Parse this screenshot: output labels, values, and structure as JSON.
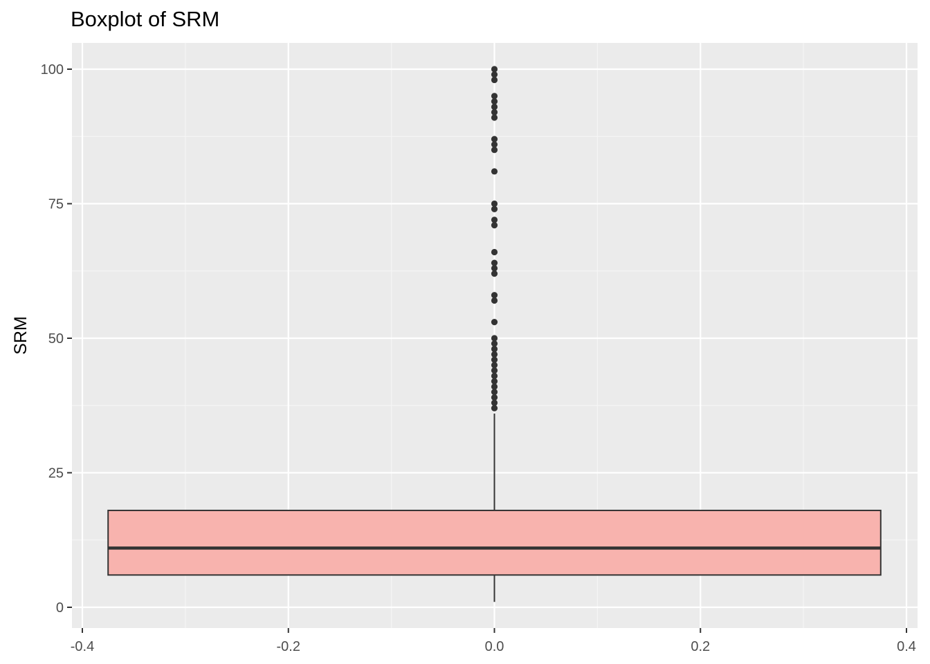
{
  "chart_data": {
    "type": "boxplot",
    "title": "Boxplot of SRM",
    "xlabel": "",
    "ylabel": "SRM",
    "xlim": [
      -0.4,
      0.4
    ],
    "ylim": [
      0,
      100
    ],
    "x_ticks": [
      -0.4,
      -0.2,
      0.0,
      0.2,
      0.4
    ],
    "x_tick_labels": [
      "-0.4",
      "-0.2",
      "0.0",
      "0.2",
      "0.4"
    ],
    "y_ticks": [
      0,
      25,
      50,
      75,
      100
    ],
    "y_tick_labels": [
      "0",
      "25",
      "50",
      "75",
      "100"
    ],
    "grid": true,
    "box": {
      "x_center": 0.0,
      "half_width": 0.375,
      "q1": 6,
      "median": 11,
      "q3": 18,
      "whisker_low": 1,
      "whisker_high": 36,
      "fill": "#F8B3AE",
      "outline": "#333333"
    },
    "outliers": [
      37,
      38,
      39,
      40,
      41,
      42,
      43,
      44,
      45,
      46,
      47,
      48,
      49,
      50,
      53,
      57,
      58,
      62,
      63,
      64,
      66,
      71,
      72,
      74,
      75,
      81,
      85,
      86,
      87,
      91,
      92,
      93,
      94,
      95,
      98,
      99,
      100
    ]
  },
  "colors": {
    "panel_background": "#EBEBEB",
    "grid_major": "#FFFFFF",
    "grid_minor": "#F5F5F5",
    "outlier": "#333333"
  }
}
